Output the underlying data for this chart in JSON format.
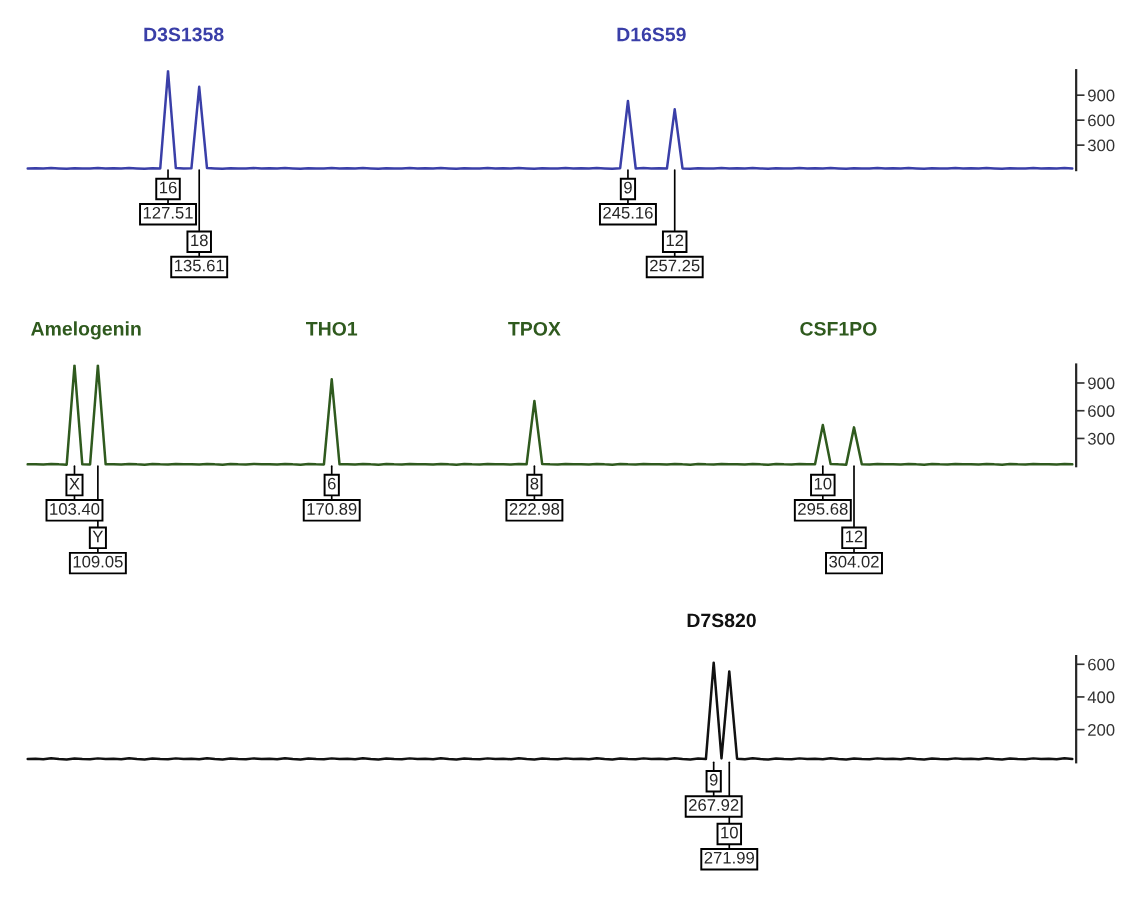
{
  "chart_data": [
    {
      "type": "line",
      "categories": [
        null,
        null,
        null,
        null,
        null,
        null,
        null,
        null,
        null,
        null,
        null,
        null,
        null,
        null,
        null,
        null,
        null,
        null,
        null,
        null,
        null,
        null,
        null,
        null,
        null,
        null,
        null,
        null,
        null,
        null,
        null,
        null,
        null,
        null,
        null,
        null,
        null,
        null,
        null,
        null,
        null,
        null,
        null,
        null,
        null,
        null,
        null,
        null,
        null,
        null,
        null,
        null,
        null,
        null,
        null,
        null,
        null,
        null,
        null,
        null,
        null,
        null,
        null,
        null,
        null,
        null,
        null,
        null,
        null,
        null,
        null,
        null,
        null,
        null,
        null,
        null,
        null,
        null,
        null,
        null,
        null,
        null,
        null,
        null,
        null,
        null,
        null,
        null,
        null,
        null,
        null,
        null,
        null,
        null,
        null,
        null,
        null,
        null,
        null,
        null,
        null,
        null,
        null,
        null,
        null,
        null,
        null,
        null,
        null,
        null,
        null,
        null,
        null,
        null,
        null,
        null,
        null,
        null,
        null,
        null,
        null,
        null,
        null,
        null,
        null,
        null,
        null,
        null,
        null,
        null,
        null,
        null,
        null,
        null,
        null
      ],
      "ylim": [
        0,
        1200
      ],
      "yticks": [
        300,
        600,
        900
      ],
      "tick_labels": "y",
      "grid": false,
      "marker": "none",
      "line_style": "solid",
      "series": [
        {
          "color": "#3a3fa8",
          "values": [
            20,
            22,
            18,
            25,
            20,
            17,
            23,
            20,
            19,
            24,
            20,
            22,
            18,
            25,
            20,
            17,
            23,
            20,
            1190,
            24,
            20,
            22,
            1000,
            25,
            20,
            17,
            23,
            20,
            19,
            24,
            20,
            22,
            18,
            25,
            20,
            17,
            23,
            20,
            19,
            24,
            20,
            22,
            18,
            25,
            20,
            17,
            23,
            20,
            19,
            24,
            20,
            22,
            18,
            25,
            20,
            17,
            23,
            20,
            19,
            24,
            20,
            22,
            18,
            25,
            20,
            17,
            23,
            20,
            19,
            24,
            20,
            22,
            18,
            25,
            20,
            17,
            23,
            830,
            19,
            24,
            20,
            22,
            18,
            730,
            20,
            17,
            23,
            20,
            19,
            24,
            20,
            22,
            18,
            25,
            20,
            17,
            23,
            20,
            19,
            24,
            20,
            22,
            18,
            25,
            20,
            17,
            23,
            20,
            19,
            24,
            20,
            22,
            18,
            25,
            20,
            17,
            23,
            20,
            19,
            24,
            20,
            22,
            18,
            25,
            20,
            17,
            23,
            20,
            19,
            24,
            20,
            22,
            18,
            25,
            20
          ]
        }
      ],
      "annotations": [
        "D3S1358",
        "D16S59",
        "16",
        "127.51",
        "18",
        "135.61",
        "9",
        "245.16",
        "12",
        "257.25"
      ]
    },
    {
      "type": "line",
      "categories": [
        null,
        null,
        null,
        null,
        null,
        null,
        null,
        null,
        null,
        null,
        null,
        null,
        null,
        null,
        null,
        null,
        null,
        null,
        null,
        null,
        null,
        null,
        null,
        null,
        null,
        null,
        null,
        null,
        null,
        null,
        null,
        null,
        null,
        null,
        null,
        null,
        null,
        null,
        null,
        null,
        null,
        null,
        null,
        null,
        null,
        null,
        null,
        null,
        null,
        null,
        null,
        null,
        null,
        null,
        null,
        null,
        null,
        null,
        null,
        null,
        null,
        null,
        null,
        null,
        null,
        null,
        null,
        null,
        null,
        null,
        null,
        null,
        null,
        null,
        null,
        null,
        null,
        null,
        null,
        null,
        null,
        null,
        null,
        null,
        null,
        null,
        null,
        null,
        null,
        null,
        null,
        null,
        null,
        null,
        null,
        null,
        null,
        null,
        null,
        null,
        null,
        null,
        null,
        null,
        null,
        null,
        null,
        null,
        null,
        null,
        null,
        null,
        null,
        null,
        null,
        null,
        null,
        null,
        null,
        null,
        null,
        null,
        null,
        null,
        null,
        null,
        null,
        null,
        null,
        null,
        null,
        null,
        null,
        null,
        null
      ],
      "ylim": [
        0,
        1100
      ],
      "yticks": [
        300,
        600,
        900
      ],
      "tick_labels": "y",
      "grid": false,
      "marker": "none",
      "line_style": "solid",
      "series": [
        {
          "color": "#2f5a1e",
          "values": [
            20,
            22,
            18,
            25,
            20,
            17,
            1090,
            20,
            19,
            1090,
            20,
            22,
            18,
            25,
            20,
            17,
            23,
            20,
            19,
            24,
            20,
            22,
            18,
            25,
            20,
            17,
            23,
            20,
            19,
            24,
            20,
            22,
            18,
            25,
            20,
            17,
            23,
            20,
            19,
            940,
            20,
            22,
            18,
            25,
            20,
            17,
            23,
            20,
            19,
            24,
            20,
            22,
            18,
            25,
            20,
            17,
            23,
            20,
            19,
            24,
            20,
            22,
            18,
            25,
            20,
            705,
            23,
            20,
            19,
            24,
            20,
            22,
            18,
            25,
            20,
            17,
            23,
            20,
            19,
            24,
            20,
            22,
            18,
            25,
            20,
            17,
            23,
            20,
            19,
            24,
            20,
            22,
            18,
            25,
            20,
            17,
            23,
            20,
            19,
            24,
            20,
            22,
            445,
            25,
            20,
            17,
            420,
            20,
            19,
            24,
            20,
            22,
            18,
            25,
            20,
            17,
            23,
            20,
            19,
            24,
            20,
            22,
            18,
            25,
            20,
            17,
            23,
            20,
            19,
            24,
            20,
            22,
            18,
            25,
            20
          ]
        }
      ],
      "annotations": [
        "Amelogenin",
        "THO1",
        "TPOX",
        "CSF1PO",
        "X",
        "103.40",
        "Y",
        "109.05",
        "6",
        "170.89",
        "8",
        "222.98",
        "10",
        "295.68",
        "12",
        "304.02"
      ]
    },
    {
      "type": "line",
      "categories": [
        null,
        null,
        null,
        null,
        null,
        null,
        null,
        null,
        null,
        null,
        null,
        null,
        null,
        null,
        null,
        null,
        null,
        null,
        null,
        null,
        null,
        null,
        null,
        null,
        null,
        null,
        null,
        null,
        null,
        null,
        null,
        null,
        null,
        null,
        null,
        null,
        null,
        null,
        null,
        null,
        null,
        null,
        null,
        null,
        null,
        null,
        null,
        null,
        null,
        null,
        null,
        null,
        null,
        null,
        null,
        null,
        null,
        null,
        null,
        null,
        null,
        null,
        null,
        null,
        null,
        null,
        null,
        null,
        null,
        null,
        null,
        null,
        null,
        null,
        null,
        null,
        null,
        null,
        null,
        null,
        null,
        null,
        null,
        null,
        null,
        null,
        null,
        null,
        null,
        null,
        null,
        null,
        null,
        null,
        null,
        null,
        null,
        null,
        null,
        null,
        null,
        null,
        null,
        null,
        null,
        null,
        null,
        null,
        null,
        null,
        null,
        null,
        null,
        null,
        null,
        null,
        null,
        null,
        null,
        null,
        null,
        null,
        null,
        null,
        null,
        null,
        null,
        null,
        null,
        null,
        null,
        null,
        null,
        null,
        null
      ],
      "ylim": [
        0,
        650
      ],
      "yticks": [
        200,
        400,
        600
      ],
      "tick_labels": "y",
      "grid": false,
      "marker": "none",
      "line_style": "solid",
      "series": [
        {
          "color": "#111111",
          "values": [
            20,
            22,
            18,
            25,
            20,
            17,
            23,
            20,
            19,
            24,
            20,
            22,
            18,
            25,
            20,
            17,
            23,
            20,
            19,
            24,
            20,
            22,
            18,
            25,
            20,
            17,
            23,
            20,
            19,
            24,
            20,
            22,
            18,
            25,
            20,
            17,
            23,
            20,
            19,
            24,
            20,
            22,
            18,
            25,
            20,
            17,
            23,
            20,
            19,
            24,
            20,
            22,
            18,
            25,
            20,
            17,
            23,
            20,
            19,
            24,
            20,
            22,
            18,
            25,
            20,
            17,
            23,
            20,
            19,
            24,
            20,
            22,
            18,
            25,
            20,
            17,
            23,
            20,
            19,
            24,
            20,
            22,
            18,
            25,
            20,
            17,
            23,
            20,
            610,
            24,
            556,
            22,
            18,
            25,
            20,
            17,
            23,
            20,
            19,
            24,
            20,
            22,
            18,
            25,
            20,
            17,
            23,
            20,
            19,
            24,
            20,
            22,
            18,
            25,
            20,
            17,
            23,
            20,
            19,
            24,
            20,
            22,
            18,
            25,
            20,
            17,
            23,
            20,
            19,
            24,
            20,
            22,
            18,
            25,
            20
          ]
        }
      ],
      "annotations": [
        "D7S820",
        "9",
        "267.92",
        "10",
        "271.99"
      ]
    }
  ]
}
